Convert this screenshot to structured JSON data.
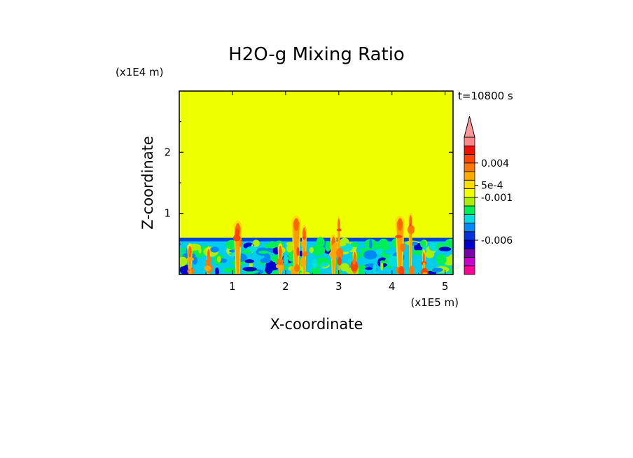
{
  "chart_data": {
    "type": "heatmap",
    "title": "H2O-g Mixing Ratio",
    "time_label": "t=10800 s",
    "xlabel": "X-coordinate",
    "ylabel": "Z-coordinate",
    "x_unit": "(x1E5 m)",
    "y_unit": "(x1E4 m)",
    "xlim": [
      0,
      5.15
    ],
    "ylim": [
      0,
      3
    ],
    "x_ticks": [
      {
        "value": 1,
        "label": "1"
      },
      {
        "value": 2,
        "label": "2"
      },
      {
        "value": 3,
        "label": "3"
      },
      {
        "value": 4,
        "label": "4"
      },
      {
        "value": 5,
        "label": "5"
      }
    ],
    "y_ticks": [
      {
        "value": 1,
        "label": "1"
      },
      {
        "value": 2,
        "label": "2"
      }
    ],
    "background_level_color": "#eeff00",
    "boundary_layer_top": 0.6,
    "colorbar": {
      "colors": [
        "#ff0099",
        "#cc00cc",
        "#7700aa",
        "#0000cc",
        "#0033dd",
        "#0088ff",
        "#00dddd",
        "#00ee55",
        "#aaee00",
        "#eeff00",
        "#ffdd00",
        "#ffaa00",
        "#ff7700",
        "#ff4400",
        "#ee1100",
        "#ff8888"
      ],
      "extend_top_color": "#ff9999",
      "labels": [
        {
          "text": "0.004",
          "at_level": 13
        },
        {
          "text": "5e-4",
          "at_level": 10.4
        },
        {
          "text": "-0.001",
          "at_level": 9
        },
        {
          "text": "-0.006",
          "at_level": 4
        }
      ]
    },
    "plumes": [
      {
        "x": 0.2,
        "top": 0.55,
        "w": 0.1
      },
      {
        "x": 0.55,
        "top": 0.5,
        "w": 0.08
      },
      {
        "x": 1.1,
        "top": 0.92,
        "w": 0.16
      },
      {
        "x": 1.9,
        "top": 0.55,
        "w": 0.1
      },
      {
        "x": 2.2,
        "top": 1.0,
        "w": 0.18
      },
      {
        "x": 2.35,
        "top": 0.85,
        "w": 0.1
      },
      {
        "x": 2.9,
        "top": 0.7,
        "w": 0.12
      },
      {
        "x": 3.0,
        "top": 1.0,
        "w": 0.06
      },
      {
        "x": 3.3,
        "top": 0.45,
        "w": 0.08
      },
      {
        "x": 4.15,
        "top": 1.0,
        "w": 0.18
      },
      {
        "x": 4.35,
        "top": 1.05,
        "w": 0.08
      },
      {
        "x": 4.6,
        "top": 0.45,
        "w": 0.07
      }
    ]
  }
}
